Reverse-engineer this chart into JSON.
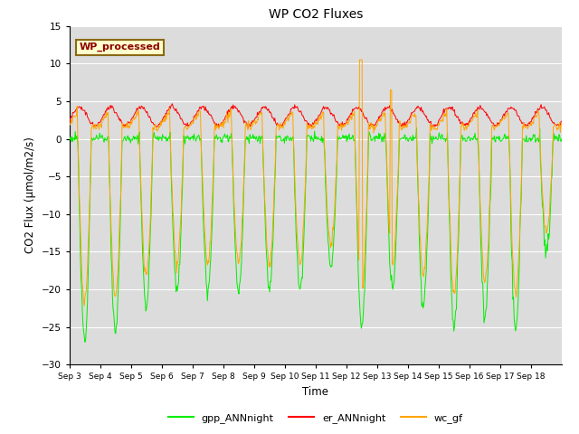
{
  "title": "WP CO2 Fluxes",
  "xlabel": "Time",
  "ylabel": "CO2 Flux (μmol/m2/s)",
  "ylim": [
    -30,
    15
  ],
  "annotation_text": "WP_processed",
  "annotation_color": "#8B0000",
  "annotation_bg": "#FFFFCC",
  "annotation_edge": "#8B6914",
  "colors": {
    "gpp": "#00EE00",
    "er": "#FF0000",
    "wc": "#FFA500"
  },
  "legend_labels": [
    "gpp_ANNnight",
    "er_ANNnight",
    "wc_gf"
  ],
  "bg_color": "#DCDCDC",
  "fig_color": "#FFFFFF",
  "n_days": 16,
  "points_per_day": 48,
  "yticks": [
    -30,
    -25,
    -20,
    -15,
    -10,
    -5,
    0,
    5,
    10,
    15
  ],
  "xtick_labels": [
    "Sep 3",
    "Sep 4",
    "Sep 5",
    "Sep 6",
    "Sep 7",
    "Sep 8",
    "Sep 9",
    "Sep 10",
    "Sep 11",
    "Sep 12",
    "Sep 13",
    "Sep 14",
    "Sep 15",
    "Sep 16",
    "Sep 17",
    "Sep 18"
  ],
  "gpp_depths": [
    -26.5,
    -25.5,
    -22.5,
    -20.0,
    -20.0,
    -20.0,
    -20.0,
    -20.0,
    -17.0,
    -25.0,
    -20.0,
    -22.0,
    -25.0,
    -23.0,
    -25.0,
    -15.0
  ],
  "wc_anomaly_spike": 10.5,
  "wc_anomaly_day": 9,
  "er_base": 3.0
}
